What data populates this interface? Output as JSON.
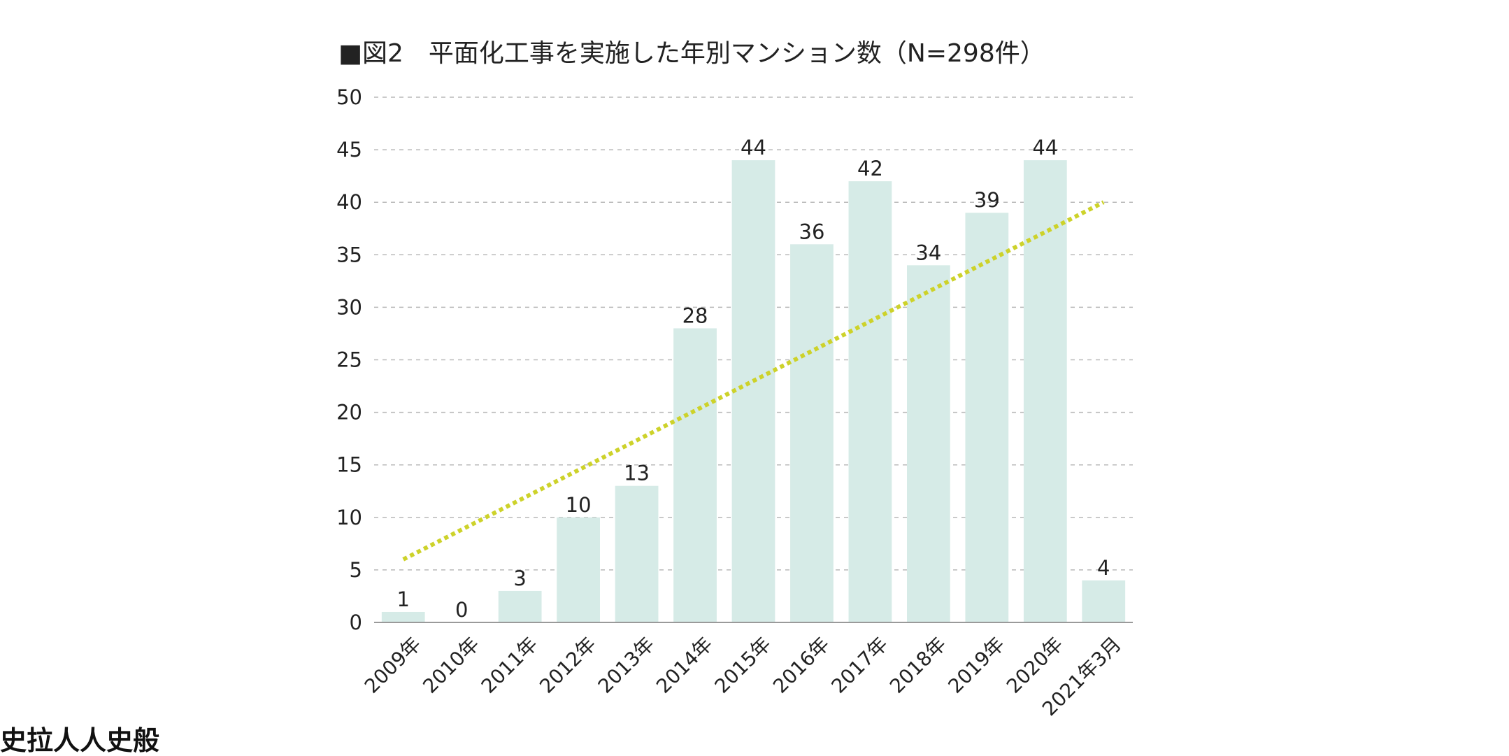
{
  "chart_data": {
    "type": "bar",
    "title": "■図2　平面化工事を実施した年別マンション数（N=298件）",
    "categories": [
      "2009年",
      "2010年",
      "2011年",
      "2012年",
      "2013年",
      "2014年",
      "2015年",
      "2016年",
      "2017年",
      "2018年",
      "2019年",
      "2020年",
      "2021年3月"
    ],
    "values": [
      1,
      0,
      3,
      10,
      13,
      28,
      44,
      36,
      42,
      34,
      39,
      44,
      4
    ],
    "data_labels": [
      "1",
      "0",
      "3",
      "10",
      "13",
      "28",
      "44",
      "36",
      "42",
      "34",
      "39",
      "44",
      "4"
    ],
    "ylim": [
      0,
      50
    ],
    "yticks": [
      0,
      5,
      10,
      15,
      20,
      25,
      30,
      35,
      40,
      45,
      50
    ],
    "grid": true,
    "bar_color": "#d6ebe7",
    "trendline": {
      "style": "dotted",
      "color": "#cdd22a",
      "from": {
        "category": "2009年",
        "value": 6
      },
      "to": {
        "category": "2021年3月",
        "value": 40
      }
    },
    "xlabel": "",
    "ylabel": ""
  },
  "footer_text": "史拉人人史般"
}
